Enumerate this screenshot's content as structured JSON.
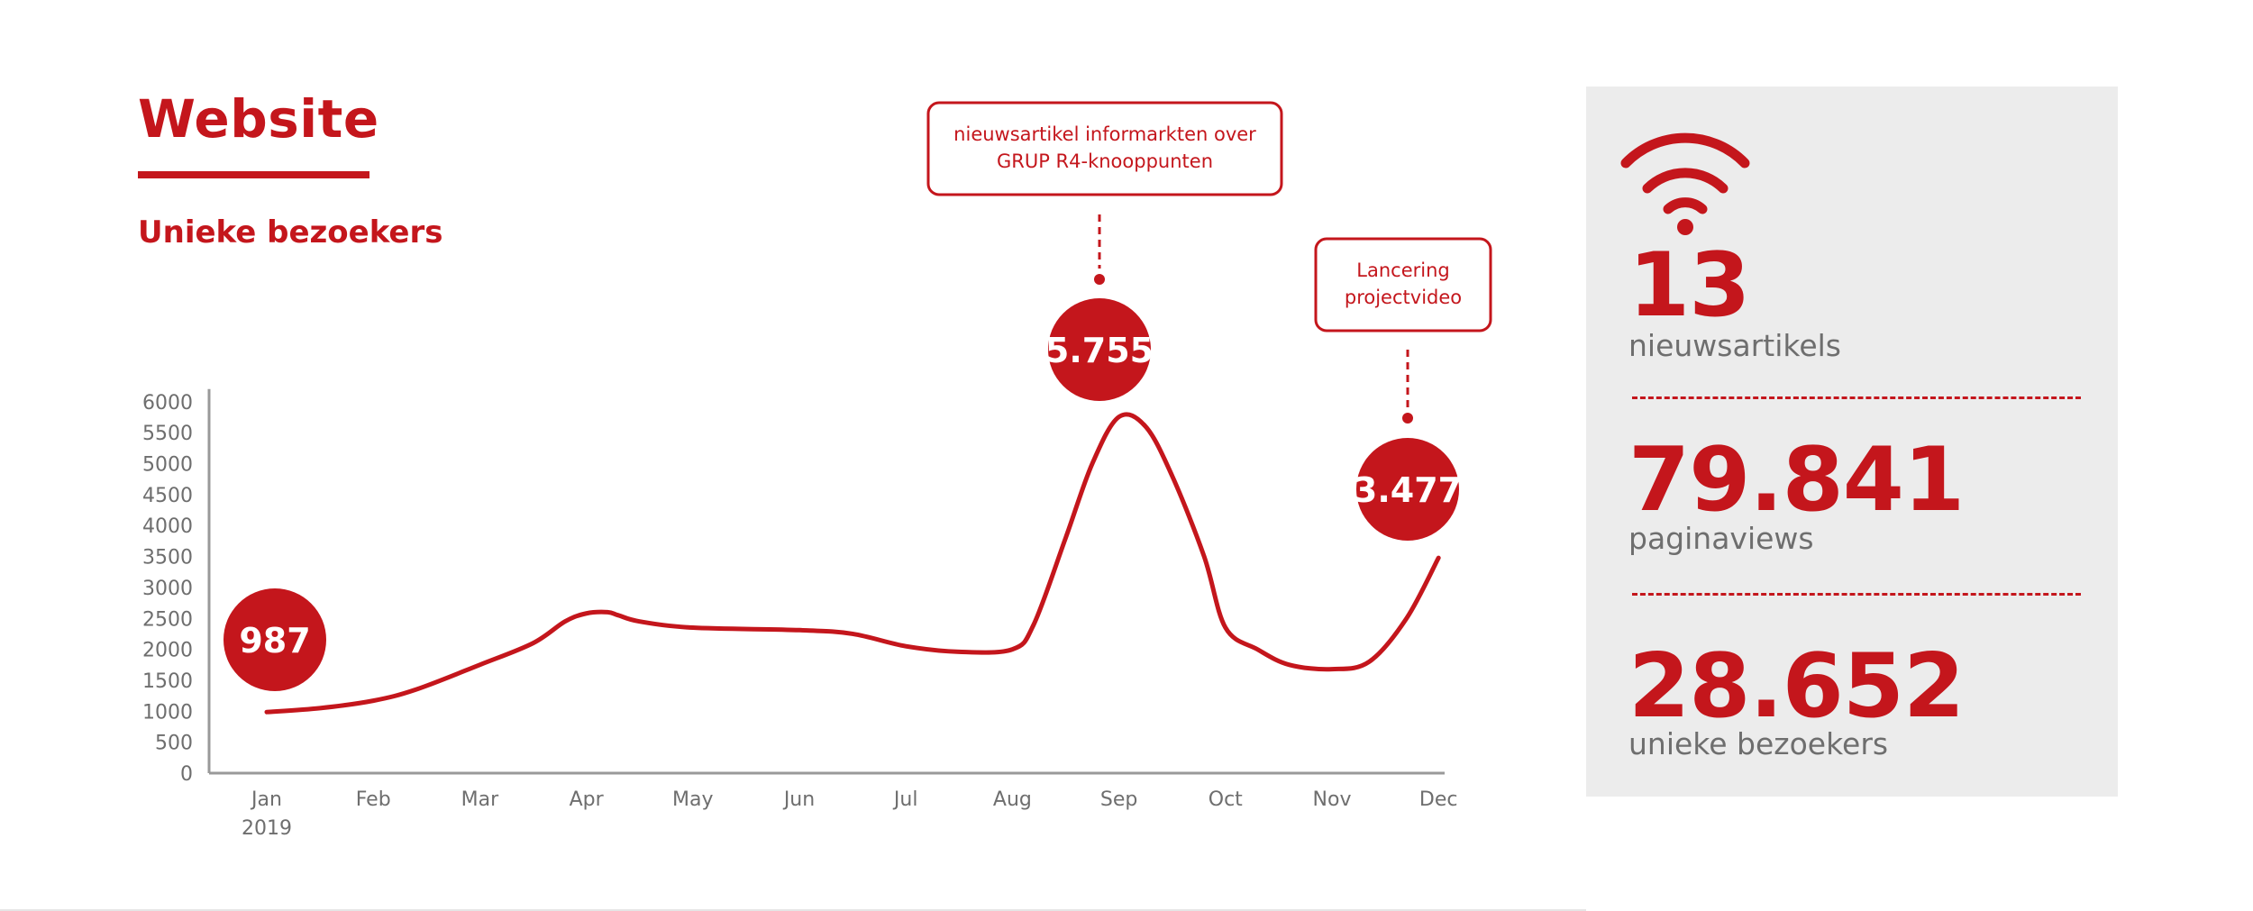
{
  "header": {
    "title": "Website",
    "subtitle": "Unieke bezoekers"
  },
  "colors": {
    "accent": "#c4161c",
    "panel_bg": "#ececec",
    "axis": "#999999",
    "label_gray": "#6e6e6e"
  },
  "chart_data": {
    "type": "line",
    "categories": [
      "Jan",
      "Feb",
      "Mar",
      "Apr",
      "May",
      "Jun",
      "Jul",
      "Aug",
      "Sep",
      "Oct",
      "Nov",
      "Dec"
    ],
    "x_sublabel": "2019",
    "values": [
      987,
      1170,
      1750,
      2550,
      2350,
      2310,
      2050,
      2000,
      5755,
      2350,
      1680,
      3477
    ],
    "curve_shape": [
      [
        0,
        987
      ],
      [
        0.5,
        1050
      ],
      [
        1,
        1170
      ],
      [
        1.4,
        1350
      ],
      [
        2,
        1750
      ],
      [
        2.5,
        2100
      ],
      [
        2.8,
        2450
      ],
      [
        3.0,
        2580
      ],
      [
        3.2,
        2600
      ],
      [
        3.3,
        2550
      ],
      [
        3.5,
        2450
      ],
      [
        4,
        2350
      ],
      [
        5,
        2310
      ],
      [
        5.5,
        2250
      ],
      [
        6,
        2050
      ],
      [
        6.5,
        1960
      ],
      [
        7,
        2000
      ],
      [
        7.2,
        2400
      ],
      [
        7.5,
        3800
      ],
      [
        7.75,
        5000
      ],
      [
        8,
        5755
      ],
      [
        8.25,
        5600
      ],
      [
        8.5,
        4800
      ],
      [
        8.8,
        3500
      ],
      [
        9,
        2350
      ],
      [
        9.3,
        2000
      ],
      [
        9.6,
        1750
      ],
      [
        10,
        1680
      ],
      [
        10.35,
        1800
      ],
      [
        10.7,
        2500
      ],
      [
        11,
        3477
      ]
    ],
    "ylim": [
      0,
      6000
    ],
    "yticks": [
      0,
      500,
      1000,
      1500,
      2000,
      2500,
      3000,
      3500,
      4000,
      4500,
      5000,
      5500,
      6000
    ],
    "grid": false,
    "data_labels": [
      {
        "index": 0,
        "text": "987"
      },
      {
        "index": 8,
        "text": "5.755"
      },
      {
        "index": 11,
        "text": "3.477"
      }
    ],
    "annotations": [
      {
        "index": 8,
        "lines": [
          "nieuwsartikel informarkten over",
          "GRUP R4-knooppunten"
        ]
      },
      {
        "index": 11,
        "lines": [
          "Lancering",
          "projectvideo"
        ]
      }
    ]
  },
  "stats": [
    {
      "value": "13",
      "label": "nieuwsartikels"
    },
    {
      "value": "79.841",
      "label": "paginaviews"
    },
    {
      "value": "28.652",
      "label": "unieke bezoekers"
    }
  ],
  "icons": {
    "panel_icon": "wifi-icon"
  }
}
